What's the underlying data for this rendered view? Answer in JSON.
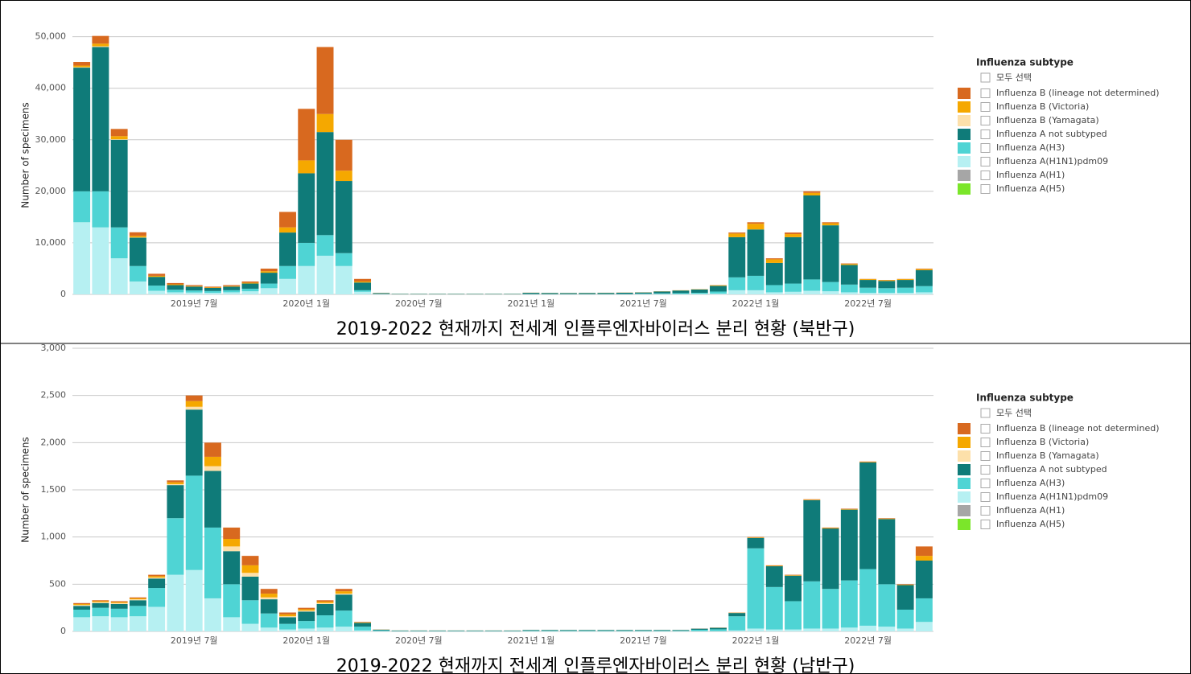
{
  "chart_data": [
    {
      "type": "bar",
      "stacked": true,
      "grid": true,
      "legend": "right",
      "caption": "2019-2022 현재까지 전세계 인플루엔자바이러스 분리 현황 (북반구)",
      "ylabel": "Number of specimens",
      "legend_title": "Influenza subtype",
      "legend_select_all": "모두 선택",
      "ylim": [
        0,
        54000
      ],
      "yticks": [
        0,
        {
          "value": 10000,
          "label": "10,000"
        },
        {
          "value": 20000,
          "label": "20,000"
        },
        {
          "value": 30000,
          "label": "30,000"
        },
        {
          "value": 40000,
          "label": "40,000"
        },
        {
          "value": 50000,
          "label": "50,000"
        }
      ],
      "categories": [
        null,
        null,
        null,
        null,
        null,
        null,
        "2019년 7월",
        null,
        null,
        null,
        null,
        null,
        "2020년 1월",
        null,
        null,
        null,
        null,
        null,
        "2020년 7월",
        null,
        null,
        null,
        null,
        null,
        "2021년 1월",
        null,
        null,
        null,
        null,
        null,
        "2021년 7월",
        null,
        null,
        null,
        null,
        null,
        "2022년 1월",
        null,
        null,
        null,
        null,
        null,
        "2022년 7월",
        null,
        null,
        null
      ],
      "series": [
        {
          "name": "Influenza B (lineage not determined)",
          "color": "#d8691f",
          "values": [
            700,
            1500,
            1400,
            700,
            400,
            250,
            200,
            150,
            200,
            250,
            500,
            3000,
            10000,
            13000,
            6000,
            500,
            30,
            10,
            10,
            10,
            10,
            10,
            10,
            10,
            10,
            10,
            10,
            10,
            10,
            10,
            10,
            10,
            10,
            10,
            30,
            200,
            300,
            200,
            300,
            300,
            200,
            100,
            50,
            50,
            50,
            100
          ]
        },
        {
          "name": "Influenza B (Victoria)",
          "color": "#f5a800",
          "values": [
            300,
            500,
            600,
            300,
            200,
            150,
            100,
            100,
            100,
            150,
            300,
            1000,
            2500,
            3500,
            2000,
            200,
            20,
            10,
            10,
            10,
            10,
            10,
            10,
            10,
            20,
            20,
            20,
            20,
            20,
            20,
            20,
            30,
            40,
            50,
            120,
            700,
            1100,
            700,
            600,
            500,
            400,
            200,
            150,
            150,
            150,
            200
          ]
        },
        {
          "name": "Influenza B (Yamagata)",
          "color": "#fde0aa",
          "values": [
            100,
            150,
            100,
            50,
            0,
            0,
            0,
            0,
            0,
            0,
            0,
            0,
            0,
            0,
            0,
            0,
            0,
            0,
            0,
            0,
            0,
            0,
            0,
            0,
            0,
            0,
            0,
            0,
            0,
            0,
            0,
            0,
            0,
            0,
            0,
            0,
            0,
            0,
            0,
            0,
            0,
            0,
            0,
            0,
            0,
            0
          ]
        },
        {
          "name": "Influenza A not subtyped",
          "color": "#0f7b79",
          "values": [
            24000,
            28000,
            17000,
            5500,
            1700,
            900,
            750,
            600,
            700,
            1000,
            2100,
            6500,
            13500,
            20000,
            14000,
            1500,
            150,
            70,
            70,
            70,
            70,
            70,
            70,
            70,
            230,
            200,
            180,
            200,
            220,
            250,
            250,
            380,
            520,
            640,
            1100,
            7800,
            9000,
            4300,
            9000,
            16300,
            11000,
            3800,
            1500,
            1400,
            1500,
            3100
          ]
        },
        {
          "name": "Influenza A(H3)",
          "color": "#4fd4d4",
          "values": [
            6000,
            7000,
            6000,
            3000,
            1000,
            500,
            400,
            350,
            400,
            500,
            900,
            2500,
            4500,
            4000,
            2500,
            300,
            40,
            20,
            20,
            20,
            20,
            20,
            20,
            20,
            30,
            30,
            30,
            30,
            30,
            30,
            60,
            100,
            150,
            200,
            400,
            2500,
            2800,
            1400,
            1600,
            2200,
            1800,
            1500,
            1000,
            900,
            1000,
            1200
          ]
        },
        {
          "name": "Influenza A(H1N1)pdm09",
          "color": "#b6f0f2",
          "values": [
            14000,
            13000,
            7000,
            2500,
            700,
            400,
            350,
            300,
            400,
            600,
            1200,
            3000,
            5500,
            7500,
            5500,
            500,
            60,
            40,
            40,
            40,
            40,
            40,
            40,
            40,
            40,
            40,
            40,
            40,
            40,
            40,
            60,
            80,
            80,
            100,
            150,
            800,
            800,
            400,
            500,
            700,
            600,
            400,
            300,
            300,
            300,
            400
          ]
        },
        {
          "name": "Influenza A(H1)",
          "color": "#a6a6a6",
          "values": [
            0,
            0,
            0,
            0,
            0,
            0,
            0,
            0,
            0,
            0,
            0,
            0,
            0,
            0,
            0,
            0,
            0,
            0,
            0,
            0,
            0,
            0,
            0,
            0,
            0,
            0,
            0,
            0,
            0,
            0,
            0,
            0,
            0,
            0,
            0,
            0,
            0,
            0,
            0,
            0,
            0,
            0,
            0,
            0,
            0,
            0
          ]
        },
        {
          "name": "Influenza A(H5)",
          "color": "#7be62a",
          "values": [
            0,
            0,
            0,
            0,
            0,
            0,
            0,
            0,
            0,
            0,
            0,
            0,
            0,
            0,
            0,
            0,
            0,
            0,
            0,
            0,
            0,
            0,
            0,
            0,
            0,
            0,
            0,
            0,
            0,
            0,
            0,
            0,
            0,
            0,
            0,
            0,
            0,
            0,
            0,
            0,
            0,
            0,
            0,
            0,
            0,
            0
          ]
        }
      ]
    },
    {
      "type": "bar",
      "stacked": true,
      "grid": true,
      "legend": "right",
      "caption": "2019-2022 현재까지 전세계 인플루엔자바이러스 분리 현황 (남반구)",
      "ylabel": "Number of specimens",
      "legend_title": "Influenza subtype",
      "legend_select_all": "모두 선택",
      "ylim": [
        0,
        3000
      ],
      "yticks": [
        0,
        500,
        {
          "value": 1000,
          "label": "1,000"
        },
        {
          "value": 1500,
          "label": "1,500"
        },
        {
          "value": 2000,
          "label": "2,000"
        },
        {
          "value": 2500,
          "label": "2,500"
        },
        {
          "value": 3000,
          "label": "3,000"
        }
      ],
      "categories": [
        null,
        null,
        null,
        null,
        null,
        null,
        "2019년 7월",
        null,
        null,
        null,
        null,
        null,
        "2020년 1월",
        null,
        null,
        null,
        null,
        null,
        "2020년 7월",
        null,
        null,
        null,
        null,
        null,
        "2021년 1월",
        null,
        null,
        null,
        null,
        null,
        "2021년 7월",
        null,
        null,
        null,
        null,
        null,
        "2022년 1월",
        null,
        null,
        null,
        null,
        null,
        "2022년 7월",
        null,
        null,
        null
      ],
      "series": [
        {
          "name": "Influenza B (lineage not determined)",
          "color": "#d8691f",
          "values": [
            10,
            10,
            10,
            10,
            15,
            20,
            60,
            150,
            120,
            100,
            50,
            20,
            15,
            15,
            25,
            5,
            1,
            1,
            1,
            1,
            1,
            1,
            1,
            1,
            1,
            1,
            1,
            1,
            1,
            1,
            1,
            1,
            1,
            1,
            1,
            2,
            5,
            5,
            5,
            5,
            5,
            5,
            5,
            5,
            5,
            100
          ]
        },
        {
          "name": "Influenza B (Victoria)",
          "color": "#f5a800",
          "values": [
            10,
            10,
            10,
            10,
            15,
            20,
            60,
            100,
            80,
            80,
            40,
            20,
            15,
            15,
            25,
            5,
            1,
            0,
            0,
            0,
            0,
            0,
            0,
            0,
            0,
            0,
            0,
            0,
            0,
            0,
            0,
            0,
            0,
            0,
            1,
            3,
            5,
            5,
            5,
            5,
            5,
            5,
            5,
            5,
            5,
            50
          ]
        },
        {
          "name": "Influenza B (Yamagata)",
          "color": "#fde0aa",
          "values": [
            10,
            10,
            10,
            10,
            10,
            10,
            30,
            50,
            50,
            40,
            20,
            10,
            10,
            10,
            10,
            0,
            0,
            0,
            0,
            0,
            0,
            0,
            0,
            0,
            0,
            0,
            0,
            0,
            0,
            0,
            0,
            0,
            0,
            0,
            0,
            0,
            0,
            0,
            0,
            0,
            0,
            0,
            0,
            0,
            0,
            0
          ]
        },
        {
          "name": "Influenza A not subtyped",
          "color": "#0f7b79",
          "values": [
            40,
            50,
            50,
            60,
            100,
            350,
            700,
            600,
            350,
            250,
            150,
            70,
            100,
            120,
            170,
            40,
            8,
            4,
            4,
            4,
            4,
            4,
            4,
            4,
            6,
            6,
            6,
            6,
            6,
            6,
            6,
            6,
            6,
            12,
            16,
            35,
            110,
            220,
            270,
            860,
            640,
            750,
            1130,
            690,
            260,
            400
          ]
        },
        {
          "name": "Influenza A(H3)",
          "color": "#4fd4d4",
          "values": [
            80,
            90,
            90,
            110,
            200,
            600,
            1000,
            750,
            350,
            250,
            150,
            60,
            80,
            130,
            170,
            40,
            8,
            4,
            4,
            4,
            4,
            4,
            4,
            4,
            7,
            7,
            7,
            7,
            7,
            7,
            7,
            7,
            7,
            15,
            20,
            150,
            850,
            450,
            300,
            500,
            420,
            500,
            600,
            450,
            200,
            250
          ]
        },
        {
          "name": "Influenza A(H1N1)pdm09",
          "color": "#b6f0f2",
          "values": [
            150,
            160,
            150,
            160,
            260,
            600,
            650,
            350,
            150,
            80,
            40,
            20,
            30,
            40,
            50,
            10,
            2,
            1,
            1,
            1,
            1,
            1,
            1,
            1,
            1,
            1,
            1,
            1,
            1,
            1,
            1,
            1,
            1,
            2,
            2,
            10,
            30,
            20,
            20,
            30,
            30,
            40,
            60,
            50,
            30,
            100
          ]
        },
        {
          "name": "Influenza A(H1)",
          "color": "#a6a6a6",
          "values": [
            0,
            0,
            0,
            0,
            0,
            0,
            0,
            0,
            0,
            0,
            0,
            0,
            0,
            0,
            0,
            0,
            0,
            0,
            0,
            0,
            0,
            0,
            0,
            0,
            0,
            0,
            0,
            0,
            0,
            0,
            0,
            0,
            0,
            0,
            0,
            0,
            0,
            0,
            0,
            0,
            0,
            0,
            0,
            0,
            0,
            0
          ]
        },
        {
          "name": "Influenza A(H5)",
          "color": "#7be62a",
          "values": [
            0,
            0,
            0,
            0,
            0,
            0,
            0,
            0,
            0,
            0,
            0,
            0,
            0,
            0,
            0,
            0,
            0,
            0,
            0,
            0,
            0,
            0,
            0,
            0,
            0,
            0,
            0,
            0,
            0,
            0,
            0,
            0,
            0,
            0,
            0,
            0,
            0,
            0,
            0,
            0,
            0,
            0,
            0,
            0,
            0,
            0
          ]
        }
      ]
    }
  ]
}
